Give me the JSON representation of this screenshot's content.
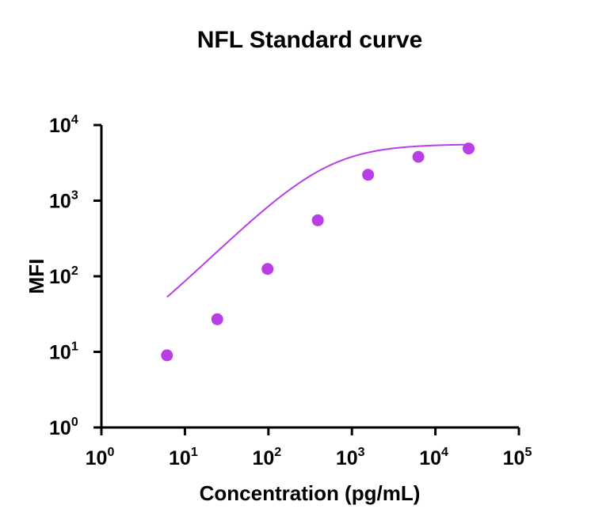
{
  "chart_data": {
    "type": "scatter",
    "title": "NFL Standard curve",
    "xlabel": "Concentration (pg/mL)",
    "ylabel": "MFI",
    "xscale": "log",
    "yscale": "log",
    "xlim": [
      1,
      100000
    ],
    "ylim": [
      1,
      10000
    ],
    "x_ticks": [
      {
        "base": "10",
        "exp": "0"
      },
      {
        "base": "10",
        "exp": "1"
      },
      {
        "base": "10",
        "exp": "2"
      },
      {
        "base": "10",
        "exp": "3"
      },
      {
        "base": "10",
        "exp": "4"
      },
      {
        "base": "10",
        "exp": "5"
      }
    ],
    "y_ticks": [
      {
        "base": "10",
        "exp": "0"
      },
      {
        "base": "10",
        "exp": "1"
      },
      {
        "base": "10",
        "exp": "2"
      },
      {
        "base": "10",
        "exp": "3"
      },
      {
        "base": "10",
        "exp": "4"
      }
    ],
    "grid": false,
    "color": "#b93ee6",
    "points": [
      {
        "x": 6.1,
        "y": 9
      },
      {
        "x": 24.4,
        "y": 27
      },
      {
        "x": 97.7,
        "y": 125
      },
      {
        "x": 390.6,
        "y": 550
      },
      {
        "x": 1562.5,
        "y": 2200
      },
      {
        "x": 6250,
        "y": 3800
      },
      {
        "x": 25000,
        "y": 4900
      }
    ],
    "fit": {
      "model": "4PL",
      "bottom": 5.5,
      "top": 5600,
      "ec50": 500,
      "hill": 1.08,
      "x_range": [
        6.1,
        25000
      ]
    }
  }
}
